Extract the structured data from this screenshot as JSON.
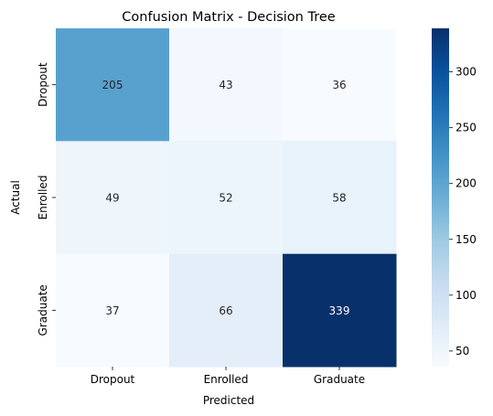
{
  "chart_data": {
    "type": "heatmap",
    "title": "Confusion Matrix - Decision Tree",
    "xlabel": "Predicted",
    "ylabel": "Actual",
    "x_categories": [
      "Dropout",
      "Enrolled",
      "Graduate"
    ],
    "y_categories": [
      "Dropout",
      "Enrolled",
      "Graduate"
    ],
    "values": [
      [
        205,
        43,
        36
      ],
      [
        49,
        52,
        58
      ],
      [
        37,
        66,
        339
      ]
    ],
    "colorscale": "Blues",
    "color_range": [
      36,
      339
    ],
    "colorbar_ticks": [
      50,
      100,
      150,
      200,
      250,
      300
    ],
    "colorbar_tick_labels": [
      "50",
      "100",
      "150",
      "200",
      "250",
      "300"
    ]
  }
}
